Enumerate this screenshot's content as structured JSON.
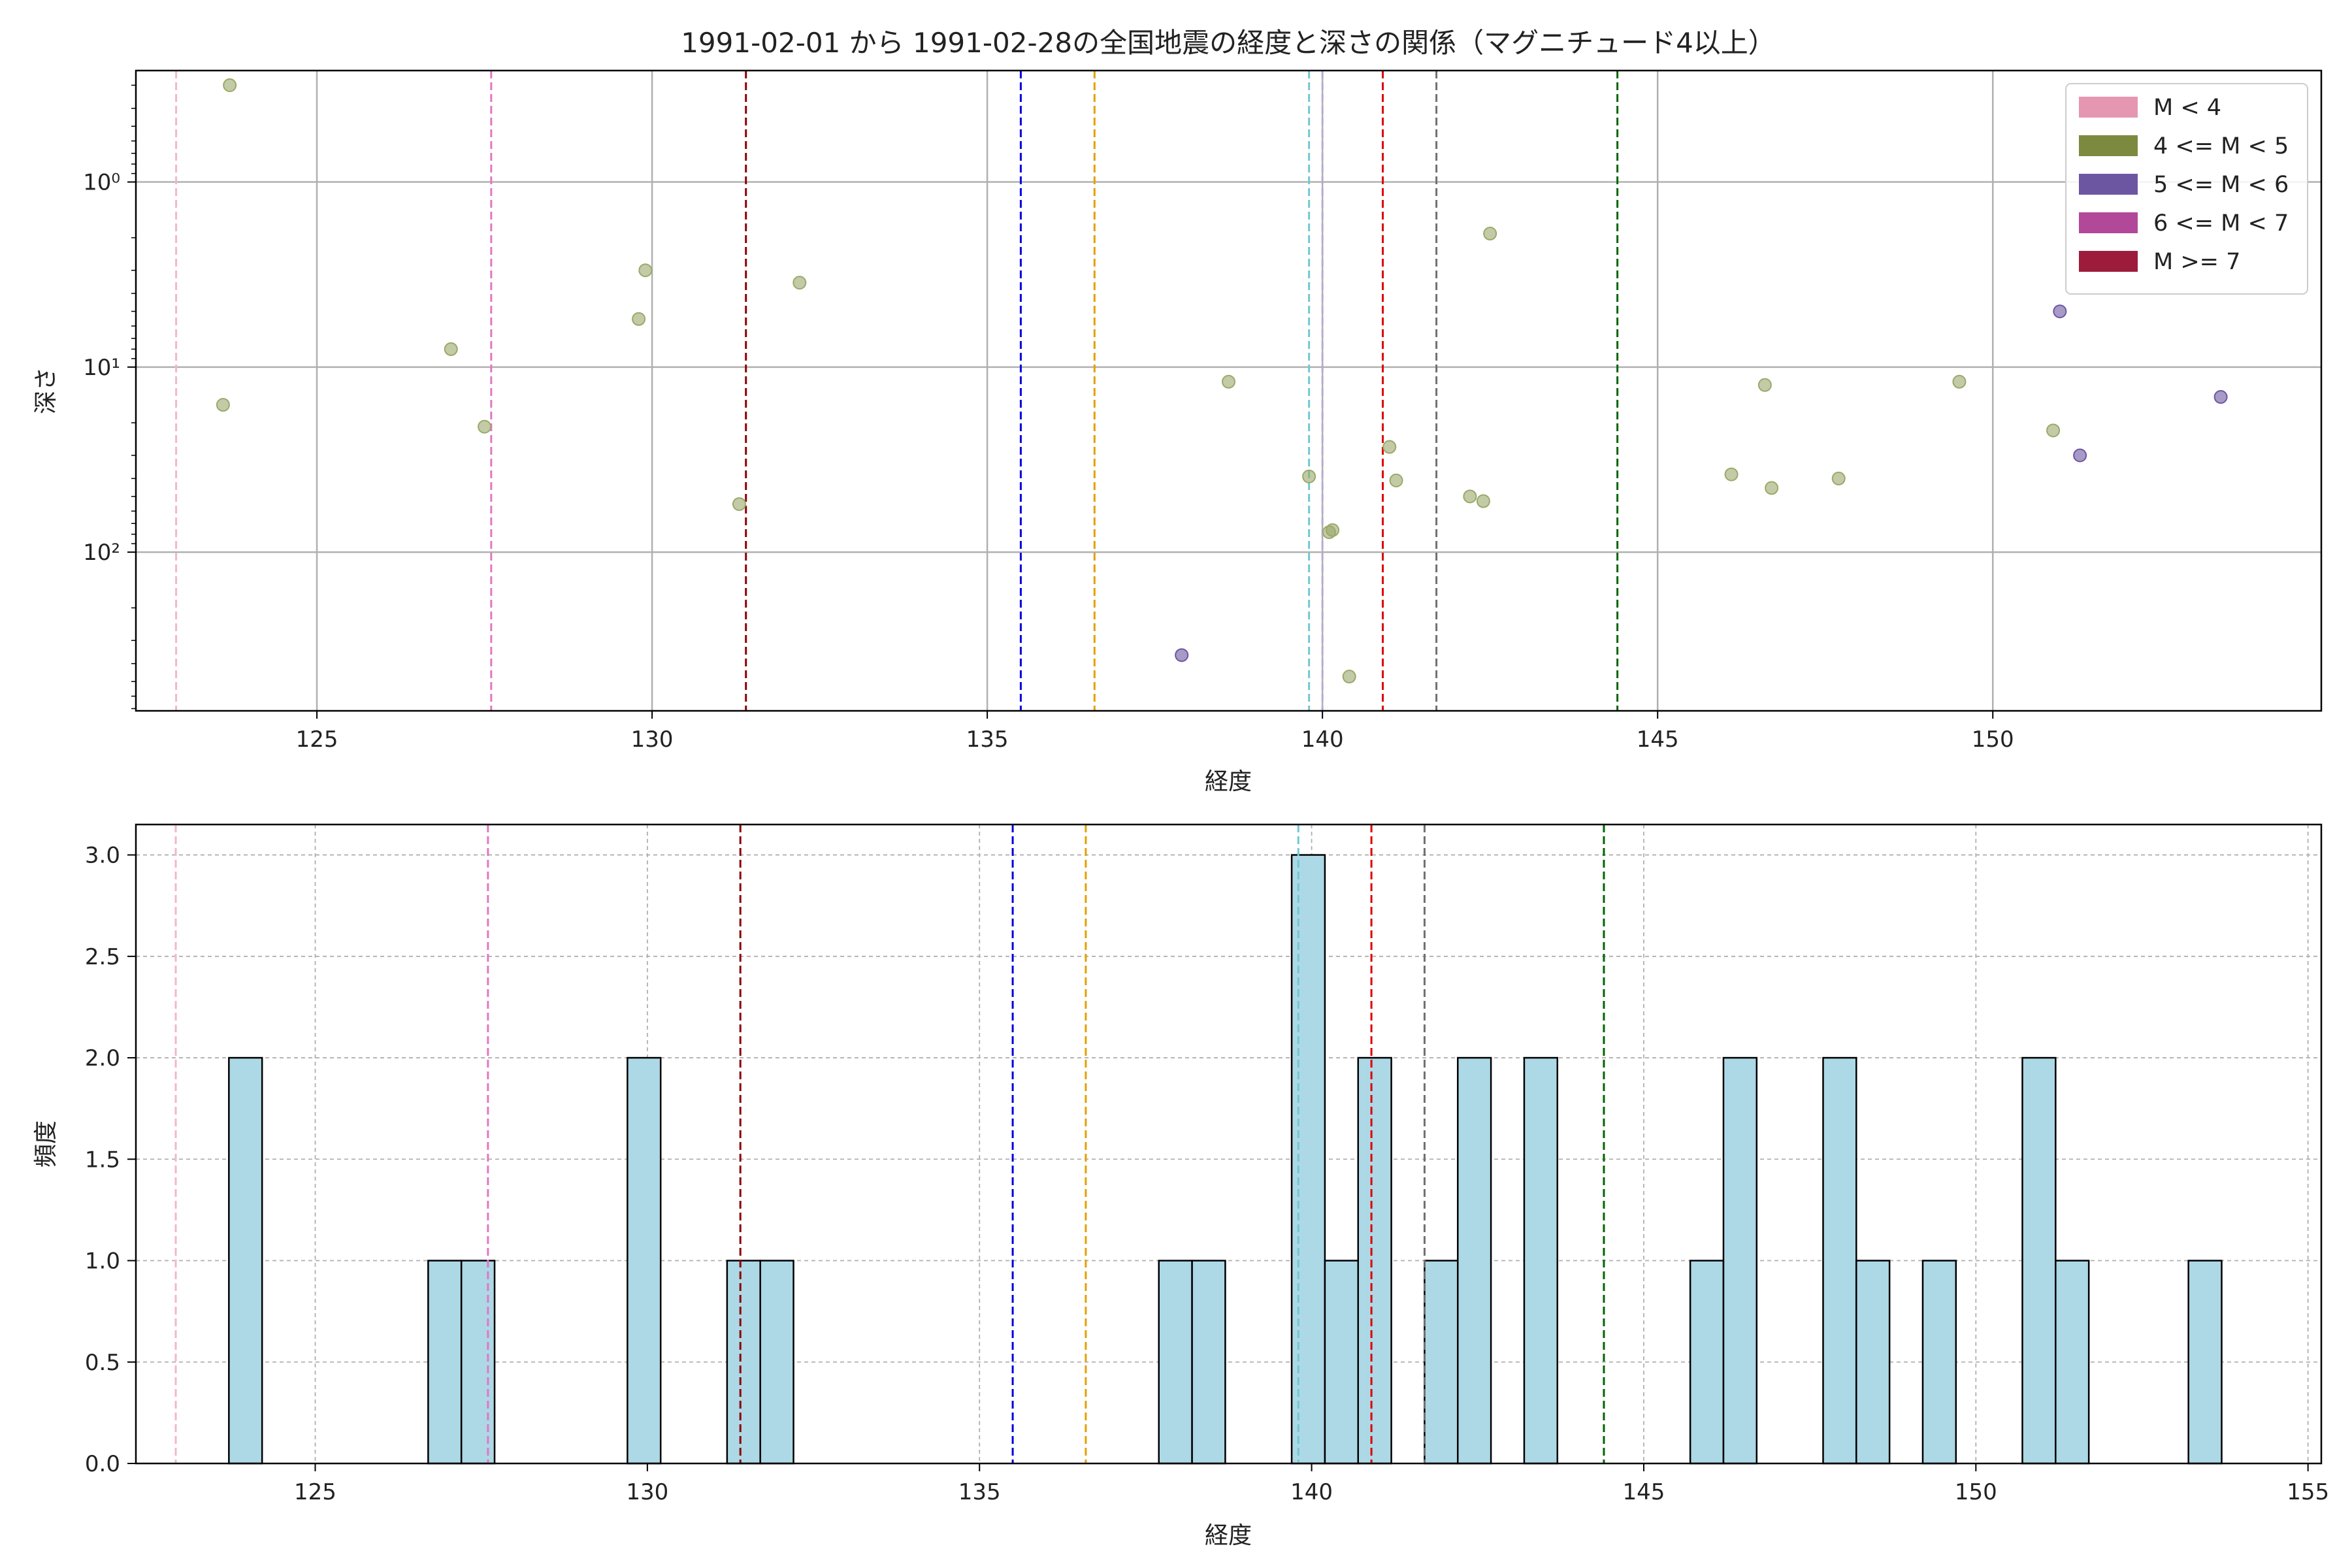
{
  "chart_data": [
    {
      "type": "scatter",
      "title": "1991-02-01 から 1991-02-28の全国地震の経度と深さの関係（マグニチュード4以上）",
      "xlabel": "経度",
      "ylabel": "深さ",
      "xlim": [
        122.3,
        154.9
      ],
      "ylim": [
        0.25,
        720
      ],
      "y_scale": "log",
      "y_inverted": true,
      "x_ticks": [
        125,
        130,
        135,
        140,
        145,
        150
      ],
      "y_ticks": [
        {
          "value": 1,
          "label": "10⁰"
        },
        {
          "value": 10,
          "label": "10¹"
        },
        {
          "value": 100,
          "label": "10²"
        }
      ],
      "grid": true,
      "legend_position": "top-right",
      "legend": [
        {
          "label": "M < 4",
          "color": "#e597b2"
        },
        {
          "label": "4 <= M < 5",
          "color": "#7b8a3f"
        },
        {
          "label": "5 <= M < 6",
          "color": "#6c56a2"
        },
        {
          "label": "6 <= M < 7",
          "color": "#b2489a"
        },
        {
          "label": "M >= 7",
          "color": "#9d1c3c"
        }
      ],
      "vlines": [
        {
          "x": 122.9,
          "color": "#f4b6cc"
        },
        {
          "x": 127.6,
          "color": "#e377c2"
        },
        {
          "x": 131.4,
          "color": "#8b0000"
        },
        {
          "x": 135.5,
          "color": "#0000dd"
        },
        {
          "x": 136.6,
          "color": "#e5a000"
        },
        {
          "x": 139.8,
          "color": "#72c8d0"
        },
        {
          "x": 140.0,
          "color": "#b8a8d8"
        },
        {
          "x": 140.9,
          "color": "#dd0000"
        },
        {
          "x": 141.7,
          "color": "#707070"
        },
        {
          "x": 144.4,
          "color": "#006400"
        }
      ],
      "series": [
        {
          "color": "#9aa96a",
          "points": [
            {
              "x": 123.7,
              "y": 0.3
            },
            {
              "x": 123.6,
              "y": 16
            },
            {
              "x": 127.0,
              "y": 8
            },
            {
              "x": 127.5,
              "y": 21
            },
            {
              "x": 129.8,
              "y": 5.5
            },
            {
              "x": 129.9,
              "y": 3
            },
            {
              "x": 131.3,
              "y": 55
            },
            {
              "x": 132.2,
              "y": 3.5
            },
            {
              "x": 138.6,
              "y": 12
            },
            {
              "x": 139.8,
              "y": 39
            },
            {
              "x": 140.1,
              "y": 78
            },
            {
              "x": 140.15,
              "y": 76
            },
            {
              "x": 140.4,
              "y": 470
            },
            {
              "x": 141.0,
              "y": 27
            },
            {
              "x": 141.1,
              "y": 41
            },
            {
              "x": 142.2,
              "y": 50
            },
            {
              "x": 142.4,
              "y": 53
            },
            {
              "x": 142.5,
              "y": 1.9
            },
            {
              "x": 146.1,
              "y": 38
            },
            {
              "x": 146.6,
              "y": 12.5
            },
            {
              "x": 146.7,
              "y": 45
            },
            {
              "x": 147.7,
              "y": 40
            },
            {
              "x": 149.5,
              "y": 12
            },
            {
              "x": 150.9,
              "y": 22
            }
          ]
        },
        {
          "color": "#6c56a2",
          "points": [
            {
              "x": 137.9,
              "y": 360
            },
            {
              "x": 151.0,
              "y": 5
            },
            {
              "x": 151.3,
              "y": 30
            },
            {
              "x": 153.4,
              "y": 14.5
            }
          ]
        }
      ]
    },
    {
      "type": "bar",
      "title": "",
      "xlabel": "経度",
      "ylabel": "頻度",
      "xlim": [
        122.3,
        155.2
      ],
      "ylim": [
        0,
        3.15
      ],
      "x_ticks": [
        125,
        130,
        135,
        140,
        145,
        150,
        155
      ],
      "y_ticks": [
        0.0,
        0.5,
        1.0,
        1.5,
        2.0,
        2.5,
        3.0
      ],
      "grid": true,
      "bar_color": "#add8e6",
      "bar_edge": "#000000",
      "bins": [
        {
          "start": 123.7,
          "end": 124.2,
          "count": 2
        },
        {
          "start": 126.7,
          "end": 127.2,
          "count": 1
        },
        {
          "start": 127.2,
          "end": 127.7,
          "count": 1
        },
        {
          "start": 129.7,
          "end": 130.2,
          "count": 2
        },
        {
          "start": 131.2,
          "end": 131.7,
          "count": 1
        },
        {
          "start": 131.7,
          "end": 132.2,
          "count": 1
        },
        {
          "start": 137.7,
          "end": 138.2,
          "count": 1
        },
        {
          "start": 138.2,
          "end": 138.7,
          "count": 1
        },
        {
          "start": 139.7,
          "end": 140.2,
          "count": 3
        },
        {
          "start": 140.2,
          "end": 140.7,
          "count": 1
        },
        {
          "start": 140.7,
          "end": 141.2,
          "count": 2
        },
        {
          "start": 141.7,
          "end": 142.2,
          "count": 1
        },
        {
          "start": 142.2,
          "end": 142.7,
          "count": 2
        },
        {
          "start": 143.2,
          "end": 143.7,
          "count": 2
        },
        {
          "start": 145.7,
          "end": 146.2,
          "count": 1
        },
        {
          "start": 146.2,
          "end": 146.7,
          "count": 2
        },
        {
          "start": 147.7,
          "end": 148.2,
          "count": 2
        },
        {
          "start": 148.2,
          "end": 148.7,
          "count": 1
        },
        {
          "start": 149.2,
          "end": 149.7,
          "count": 1
        },
        {
          "start": 150.7,
          "end": 151.2,
          "count": 2
        },
        {
          "start": 151.2,
          "end": 151.7,
          "count": 1
        },
        {
          "start": 153.2,
          "end": 153.7,
          "count": 1
        }
      ],
      "vlines": [
        {
          "x": 122.9,
          "color": "#f4b6cc"
        },
        {
          "x": 127.6,
          "color": "#e377c2"
        },
        {
          "x": 131.4,
          "color": "#8b0000"
        },
        {
          "x": 135.5,
          "color": "#0000dd"
        },
        {
          "x": 136.6,
          "color": "#e5a000"
        },
        {
          "x": 139.8,
          "color": "#72c8d0"
        },
        {
          "x": 140.9,
          "color": "#dd0000"
        },
        {
          "x": 141.7,
          "color": "#707070"
        },
        {
          "x": 144.4,
          "color": "#006400"
        }
      ]
    }
  ]
}
